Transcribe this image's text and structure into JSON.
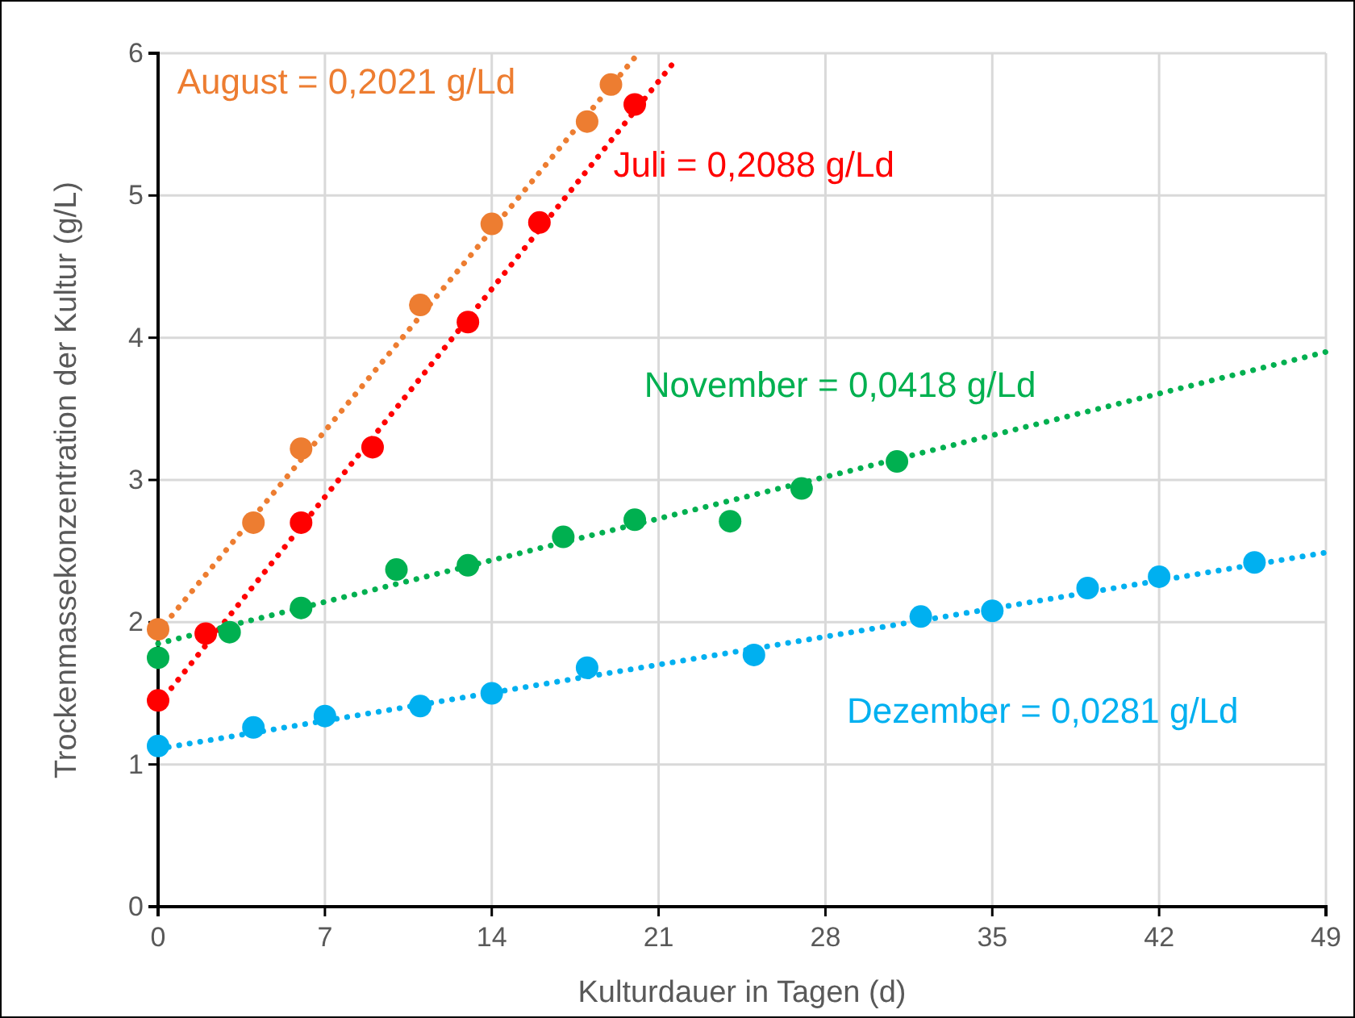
{
  "chart_data": {
    "type": "scatter",
    "xlabel": "Kulturdauer in Tagen (d)",
    "ylabel": "Trockenmassekonzentration der Kultur (g/L)",
    "xlim": [
      0,
      49
    ],
    "xticks": [
      0,
      7,
      14,
      21,
      28,
      35,
      42,
      49
    ],
    "ylim": [
      0,
      6
    ],
    "yticks": [
      0,
      1,
      2,
      3,
      4,
      5,
      6
    ],
    "grid": true,
    "marker": "circle",
    "series": [
      {
        "color": "#ed7d31",
        "x": [
          0,
          4,
          6,
          11,
          14,
          18,
          19
        ],
        "values": [
          1.95,
          2.7,
          3.22,
          4.23,
          4.8,
          5.52,
          5.78
        ]
      },
      {
        "color": "#ff0000",
        "x": [
          0,
          2,
          6,
          9,
          13,
          16,
          20
        ],
        "values": [
          1.45,
          1.92,
          2.7,
          3.23,
          4.11,
          4.81,
          5.64
        ]
      },
      {
        "color": "#00b050",
        "x": [
          0,
          3,
          6,
          10,
          13,
          17,
          20,
          24,
          27,
          31
        ],
        "values": [
          1.75,
          1.93,
          2.1,
          2.37,
          2.4,
          2.6,
          2.72,
          2.71,
          2.94,
          3.13
        ]
      },
      {
        "color": "#00b0f0",
        "x": [
          0,
          4,
          7,
          11,
          14,
          18,
          25,
          32,
          35,
          39,
          42,
          46
        ],
        "values": [
          1.13,
          1.26,
          1.34,
          1.41,
          1.5,
          1.68,
          1.77,
          2.04,
          2.08,
          2.24,
          2.32,
          2.42
        ]
      },
      {
        "type": "line",
        "marker": "none",
        "line_style": "dotted",
        "color": "#ed7d31",
        "x": [
          0,
          20.1
        ],
        "values": [
          1.93,
          5.99
        ]
      },
      {
        "type": "line",
        "marker": "none",
        "line_style": "dotted",
        "color": "#ff0000",
        "x": [
          0,
          21.8
        ],
        "values": [
          1.42,
          5.97
        ]
      },
      {
        "type": "line",
        "marker": "none",
        "line_style": "dotted",
        "color": "#00b050",
        "x": [
          0,
          49
        ],
        "values": [
          1.85,
          3.9
        ]
      },
      {
        "type": "line",
        "marker": "none",
        "line_style": "dotted",
        "color": "#00b0f0",
        "x": [
          0,
          49
        ],
        "values": [
          1.11,
          2.49
        ]
      }
    ],
    "annotations": [
      "August = 0,2021 g/Ld",
      "Juli = 0,2088 g/Ld",
      "November = 0,0418 g/Ld",
      "Dezember = 0,0281 g/Ld"
    ]
  }
}
